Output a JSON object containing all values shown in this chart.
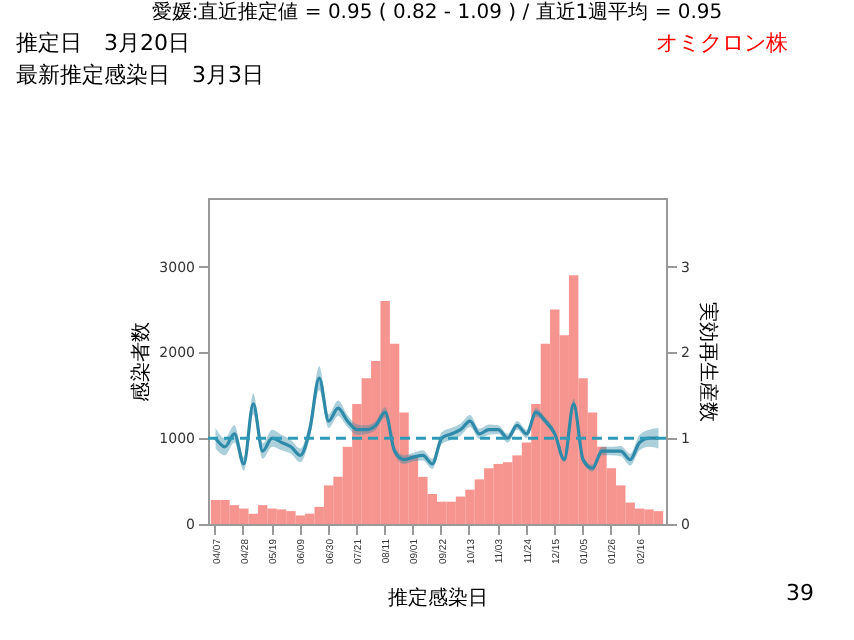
{
  "chart_data": {
    "type": "bar",
    "title": "愛媛:直近推定値 = 0.95 ( 0.82 - 1.09 ) / 直近1週平均 = 0.95",
    "annotations": [
      "推定日　3月20日",
      "最新推定感染日　3月3日",
      "オミクロン株",
      "39"
    ],
    "xlabel": "推定感染日",
    "ylabel": "感染者数",
    "y2label": "実効再生産数",
    "categories": [
      "04/07",
      null,
      null,
      "04/28",
      null,
      null,
      "05/19",
      null,
      null,
      "06/09",
      null,
      null,
      "06/30",
      null,
      null,
      "07/21",
      null,
      null,
      "08/11",
      null,
      null,
      "09/01",
      null,
      null,
      "09/22",
      null,
      null,
      "10/13",
      null,
      null,
      "11/03",
      null,
      null,
      "11/24",
      null,
      null,
      "12/15",
      null,
      null,
      "01/05",
      null,
      null,
      "01/26",
      null,
      null,
      "02/16",
      null,
      null
    ],
    "series": [
      {
        "color": "#f4837d",
        "values": [
          280,
          280,
          220,
          180,
          120,
          220,
          180,
          170,
          150,
          100,
          120,
          200,
          450,
          550,
          900,
          1400,
          1700,
          1900,
          2600,
          2100,
          1300,
          800,
          550,
          350,
          260,
          260,
          320,
          400,
          520,
          650,
          700,
          720,
          800,
          950,
          1400,
          2100,
          2500,
          2200,
          2900,
          1700,
          1300,
          900,
          650,
          450,
          250,
          180,
          170,
          150
        ]
      },
      {
        "type": "line",
        "axis": "y2",
        "color": "#2e8aa8",
        "values": [
          1.0,
          0.9,
          1.05,
          0.7,
          1.4,
          0.85,
          1.0,
          0.95,
          0.9,
          0.8,
          1.1,
          1.7,
          1.2,
          1.35,
          1.2,
          1.1,
          1.1,
          1.15,
          1.3,
          0.85,
          0.75,
          0.78,
          0.8,
          0.7,
          1.0,
          1.05,
          1.1,
          1.2,
          1.05,
          1.1,
          1.1,
          1.0,
          1.15,
          1.05,
          1.3,
          1.2,
          1.05,
          0.75,
          1.4,
          0.75,
          0.65,
          0.85,
          0.85,
          0.85,
          0.75,
          0.95,
          1.0,
          1.0
        ],
        "lower": [
          0.88,
          0.8,
          0.95,
          0.62,
          1.28,
          0.76,
          0.9,
          0.86,
          0.82,
          0.72,
          1.0,
          1.56,
          1.12,
          1.26,
          1.13,
          1.04,
          1.05,
          1.1,
          1.24,
          0.8,
          0.7,
          0.73,
          0.74,
          0.64,
          0.93,
          0.98,
          1.03,
          1.13,
          0.99,
          1.04,
          1.05,
          0.95,
          1.1,
          1.0,
          1.25,
          1.16,
          1.01,
          0.72,
          1.34,
          0.71,
          0.61,
          0.8,
          0.8,
          0.79,
          0.68,
          0.86,
          0.9,
          0.88
        ],
        "upper": [
          1.12,
          1.0,
          1.15,
          0.78,
          1.52,
          0.94,
          1.1,
          1.04,
          0.98,
          0.88,
          1.2,
          1.84,
          1.28,
          1.44,
          1.27,
          1.16,
          1.15,
          1.2,
          1.36,
          0.9,
          0.8,
          0.83,
          0.86,
          0.76,
          1.07,
          1.12,
          1.17,
          1.27,
          1.11,
          1.16,
          1.15,
          1.05,
          1.2,
          1.1,
          1.35,
          1.24,
          1.09,
          0.78,
          1.46,
          0.79,
          0.69,
          0.9,
          0.9,
          0.91,
          0.82,
          1.04,
          1.1,
          1.12
        ]
      }
    ],
    "ref_lines": [
      {
        "axis": "y2",
        "value": 1,
        "color": "#2e9ab8",
        "line_style": "dashed"
      }
    ],
    "ylim": [
      0,
      3800
    ],
    "yticks": [
      0,
      1000,
      2000,
      3000
    ],
    "y2lim": [
      0,
      3.8
    ],
    "y2ticks": [
      0,
      1,
      2,
      3
    ],
    "grid": false,
    "legend": false
  }
}
